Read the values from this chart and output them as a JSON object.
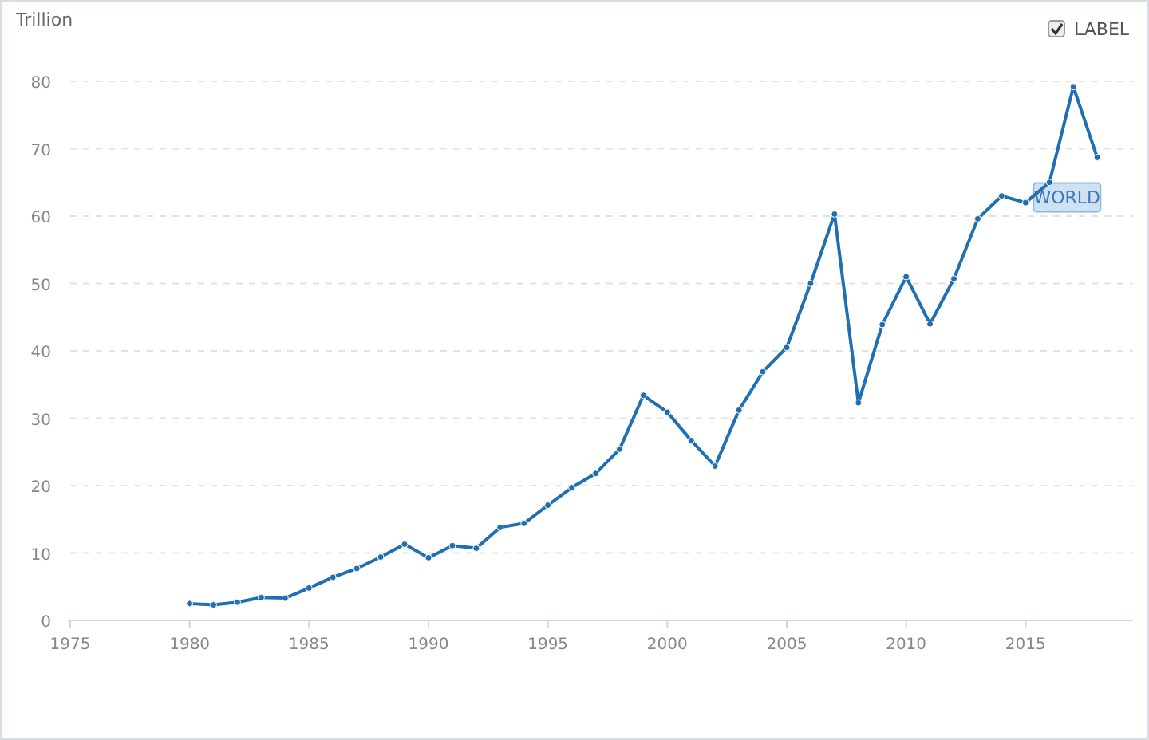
{
  "chart_data": {
    "type": "line",
    "ylabel": "Trillion",
    "annotations": [
      "LABEL"
    ],
    "x": [
      1980,
      1981,
      1982,
      1983,
      1984,
      1985,
      1986,
      1987,
      1988,
      1989,
      1990,
      1991,
      1992,
      1993,
      1994,
      1995,
      1996,
      1997,
      1998,
      1999,
      2000,
      2001,
      2002,
      2003,
      2004,
      2005,
      2006,
      2007,
      2008,
      2009,
      2010,
      2011,
      2012,
      2013,
      2014,
      2015,
      2016,
      2017,
      2018
    ],
    "series": [
      {
        "name": "WORLD",
        "color": "#1f6fb2",
        "values": [
          2.5,
          2.3,
          2.7,
          3.4,
          3.3,
          4.8,
          6.4,
          7.7,
          9.4,
          11.3,
          9.3,
          11.1,
          10.7,
          13.8,
          14.4,
          17.1,
          19.7,
          21.8,
          25.4,
          33.4,
          30.9,
          26.7,
          22.9,
          31.2,
          36.9,
          40.5,
          50.0,
          60.3,
          32.3,
          43.9,
          51.0,
          44.0,
          50.7,
          59.6,
          63.0,
          62.0,
          65.0,
          79.2,
          68.7
        ]
      }
    ],
    "xlim": [
      1975,
      2019.5
    ],
    "xticks": [
      1975,
      1980,
      1985,
      1990,
      1995,
      2000,
      2005,
      2010,
      2015
    ],
    "ylim": [
      0,
      80
    ],
    "yticks": [
      0,
      10,
      20,
      30,
      40,
      50,
      60,
      70,
      80
    ],
    "grid": "y",
    "marker": "circle",
    "line_style": "solid"
  }
}
